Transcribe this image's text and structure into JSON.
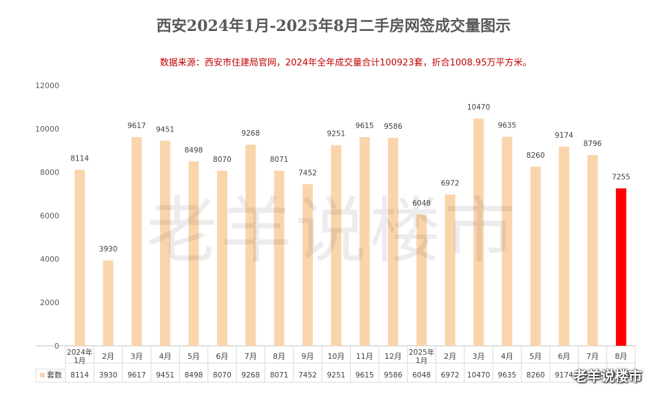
{
  "title": "西安2024年1月-2025年8月二手房网签成交量图示",
  "subtitle": "数据来源：西安市住建局官网，2024年全年成交量合计100923套，折合1008.95万平方米。",
  "watermark": "老羊说楼市",
  "corner_mark": "老羊说楼市",
  "colors": {
    "bar": "#fad5ac",
    "highlight": "#ff0000",
    "title": "#595959",
    "subtitle": "#c00000",
    "axis": "#d9d9d9"
  },
  "chart_data": {
    "type": "bar",
    "categories": [
      "2024年1月",
      "2月",
      "3月",
      "4月",
      "5月",
      "6月",
      "7月",
      "8月",
      "9月",
      "10月",
      "11月",
      "12月",
      "2025年1月",
      "2月",
      "3月",
      "4月",
      "5月",
      "6月",
      "7月",
      "8月"
    ],
    "series": [
      {
        "name": "套数",
        "values": [
          8114,
          3930,
          9617,
          9451,
          8498,
          8070,
          9268,
          8071,
          7452,
          9251,
          9615,
          9586,
          6048,
          6972,
          10470,
          9635,
          8260,
          9174,
          8796,
          7255
        ]
      }
    ],
    "highlight_index": 19,
    "ylim": [
      0,
      12000
    ],
    "yticks": [
      0,
      2000,
      4000,
      6000,
      8000,
      10000,
      12000
    ],
    "data_table": true,
    "grid": false
  }
}
